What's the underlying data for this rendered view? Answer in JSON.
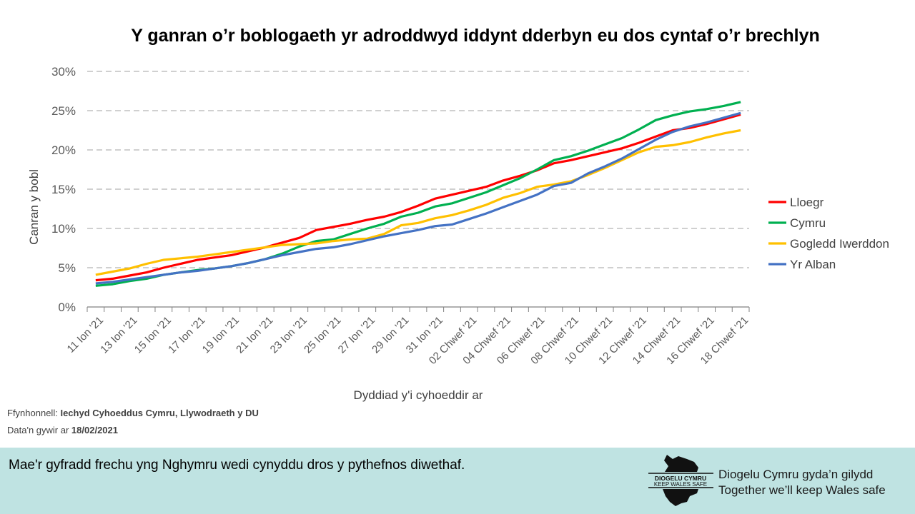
{
  "chart_data": {
    "type": "line",
    "title": "Y ganran o’r boblogaeth yr adroddwyd iddynt dderbyn eu dos cyntaf o’r brechlyn",
    "xlabel": "Dyddiad y'i cyhoeddir ar",
    "ylabel": "Canran y bobl",
    "ylim": [
      0,
      30
    ],
    "y_ticks": [
      "0%",
      "5%",
      "10%",
      "15%",
      "20%",
      "25%",
      "30%"
    ],
    "x_range": [
      "11 Ion '21",
      "18 Chwef '21"
    ],
    "x_tick_labels": [
      "11 Ion '21",
      "13 Ion '21",
      "15 Ion '21",
      "17 Ion '21",
      "19 Ion '21",
      "21 Ion '21",
      "23 Ion '21",
      "25 Ion '21",
      "27 Ion '21",
      "29 Ion '21",
      "31 Ion '21",
      "02 Chwef '21",
      "04 Chwef '21",
      "06 Chwef '21",
      "08 Chwef '21",
      "10 Chwef '21",
      "12 Chwef '21",
      "14 Chwef '21",
      "16 Chwef '21",
      "18 Chwef '21"
    ],
    "grid": "horizontal dashed",
    "legend_position": "right",
    "series": [
      {
        "name": "Lloegr",
        "color": "#ff0000",
        "values": [
          3.4,
          3.6,
          4.0,
          4.4,
          5.0,
          5.5,
          6.0,
          6.3,
          6.6,
          7.1,
          7.6,
          8.2,
          8.8,
          9.8,
          10.2,
          10.6,
          11.1,
          11.5,
          12.1,
          12.9,
          13.8,
          14.3,
          14.8,
          15.3,
          16.1,
          16.7,
          17.4,
          18.3,
          18.7,
          19.2,
          19.7,
          20.2,
          20.9,
          21.7,
          22.5,
          22.8,
          23.3,
          23.9,
          24.5
        ]
      },
      {
        "name": "Cymru",
        "color": "#00b050",
        "values": [
          2.7,
          2.9,
          3.3,
          3.6,
          4.1,
          4.4,
          4.7,
          4.9,
          5.2,
          5.6,
          6.1,
          6.8,
          7.7,
          8.4,
          8.6,
          9.3,
          10.0,
          10.6,
          11.5,
          12.0,
          12.8,
          13.2,
          13.9,
          14.6,
          15.5,
          16.4,
          17.5,
          18.7,
          19.2,
          19.9,
          20.7,
          21.5,
          22.6,
          23.8,
          24.4,
          24.9,
          25.2,
          25.6,
          26.1
        ]
      },
      {
        "name": "Gogledd Iwerddon",
        "color": "#ffc000",
        "values": [
          4.1,
          4.5,
          4.9,
          5.5,
          6.0,
          6.2,
          6.4,
          6.7,
          7.0,
          7.3,
          7.6,
          7.9,
          8.0,
          8.1,
          8.4,
          8.6,
          8.7,
          9.3,
          10.4,
          10.7,
          11.3,
          11.7,
          12.3,
          13.0,
          13.9,
          14.5,
          15.3,
          15.6,
          16.0,
          16.8,
          17.7,
          18.7,
          19.7,
          20.4,
          20.6,
          21.0,
          21.6,
          22.1,
          22.5
        ]
      },
      {
        "name": "Yr Alban",
        "color": "#4472c4",
        "values": [
          3.0,
          3.2,
          3.5,
          3.8,
          4.1,
          4.4,
          4.6,
          4.9,
          5.2,
          5.6,
          6.1,
          6.6,
          7.0,
          7.4,
          7.6,
          8.0,
          8.5,
          9.0,
          9.4,
          9.8,
          10.3,
          10.5,
          11.2,
          11.9,
          12.7,
          13.5,
          14.3,
          15.4,
          15.8,
          17.0,
          17.9,
          18.9,
          20.1,
          21.3,
          22.3,
          23.0,
          23.5,
          24.1,
          24.7
        ]
      }
    ]
  },
  "source": {
    "label": "Ffynhonnell:",
    "value": "Iechyd Cyhoeddus Cymru, Llywodraeth y DU"
  },
  "data_date": {
    "label": "Data'n gywir ar",
    "value": "18/02/2021"
  },
  "footer": {
    "message": "Mae'r gyfradd frechu yng Nghymru  wedi cynyddu dros y pythefnos diwethaf.",
    "tagline_cy": "Diogelu Cymru gyda’n gilydd",
    "tagline_en": "Together we’ll keep Wales safe",
    "logo_text": [
      "DIOGELU CYMRU",
      "KEEP WALES SAFE"
    ],
    "background": "#bfe3e2"
  }
}
